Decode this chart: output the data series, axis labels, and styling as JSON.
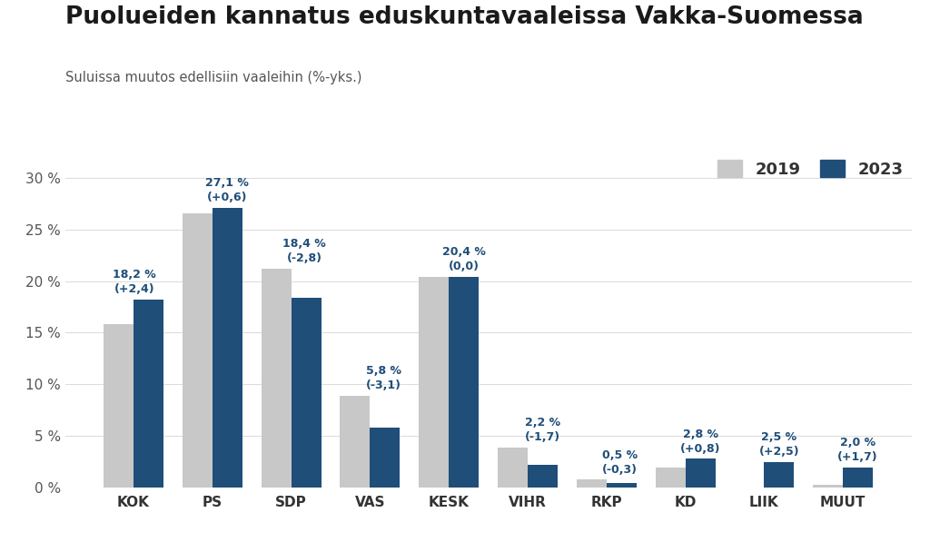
{
  "title": "Puolueiden kannatus eduskuntavaaleissa Vakka-Suomessa",
  "subtitle": "Suluissa muutos edellisiin vaaleihin (%-yks.)",
  "categories": [
    "KOK",
    "PS",
    "SDP",
    "VAS",
    "KESK",
    "VIHR",
    "RKP",
    "KD",
    "LIIK",
    "MUUT"
  ],
  "values_2019": [
    15.8,
    26.5,
    21.2,
    8.9,
    20.4,
    3.9,
    0.8,
    2.0,
    0.0,
    0.3
  ],
  "values_2023": [
    18.2,
    27.1,
    18.4,
    5.8,
    20.4,
    2.2,
    0.5,
    2.8,
    2.5,
    2.0
  ],
  "labels_2023": [
    "18,2 %\n(+2,4)",
    "27,1 %\n(+0,6)",
    "18,4 %\n(-2,8)",
    "5,8 %\n(-3,1)",
    "20,4 %\n(0,0)",
    "2,2 %\n(-1,7)",
    "0,5 %\n(-0,3)",
    "2,8 %\n(+0,8)",
    "2,5 %\n(+2,5)",
    "2,0 %\n(+1,7)"
  ],
  "label_x_offsets": [
    -0.18,
    0.0,
    -0.02,
    -0.02,
    0.0,
    0.0,
    -0.02,
    0.0,
    0.0,
    0.0
  ],
  "label_ha": [
    "center",
    "center",
    "center",
    "center",
    "center",
    "center",
    "center",
    "center",
    "center",
    "center"
  ],
  "color_2019": "#c8c8c8",
  "color_2023": "#1f4e79",
  "yticks": [
    0,
    5,
    10,
    15,
    20,
    25,
    30
  ],
  "ytick_labels": [
    "0 %",
    "5 %",
    "10 %",
    "15 %",
    "20 %",
    "25 %",
    "30 %"
  ],
  "ylim": [
    0,
    32.5
  ],
  "background_color": "#ffffff",
  "title_color": "#1a1a1a",
  "subtitle_color": "#555555",
  "label_color": "#1f4e79",
  "legend_2019": "2019",
  "legend_2023": "2023",
  "bar_width": 0.38,
  "grid_color": "#dddddd"
}
